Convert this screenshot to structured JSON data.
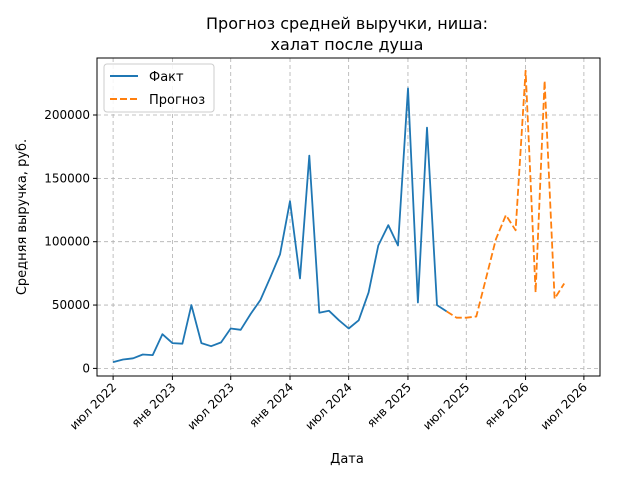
{
  "chart_data": {
    "type": "line",
    "title_line1": "Прогноз средней выручки, ниша:",
    "title_line2": "халат после душа",
    "xlabel": "Дата",
    "ylabel": "Средняя выручка, руб.",
    "x_tick_labels": [
      "июл 2022",
      "янв 2023",
      "июл 2023",
      "янв 2024",
      "июл 2024",
      "янв 2025",
      "июл 2025",
      "янв 2026",
      "июл 2026"
    ],
    "y_ticks": [
      0,
      50000,
      100000,
      150000,
      200000
    ],
    "y_tick_labels": [
      "0",
      "50000",
      "100000",
      "150000",
      "200000"
    ],
    "ylim": [
      -6000,
      245000
    ],
    "grid": true,
    "legend_position": "top-left",
    "series": [
      {
        "name": "Факт",
        "color": "#1f77b4",
        "style": "solid",
        "points": [
          [
            "2022-07",
            5000
          ],
          [
            "2022-08",
            7000
          ],
          [
            "2022-09",
            8000
          ],
          [
            "2022-10",
            11000
          ],
          [
            "2022-11",
            10500
          ],
          [
            "2022-12",
            27000
          ],
          [
            "2023-01",
            20000
          ],
          [
            "2023-02",
            19500
          ],
          [
            "2023-03",
            50000
          ],
          [
            "2023-04",
            20000
          ],
          [
            "2023-05",
            17500
          ],
          [
            "2023-06",
            20500
          ],
          [
            "2023-07",
            31500
          ],
          [
            "2023-08",
            30500
          ],
          [
            "2023-09",
            43000
          ],
          [
            "2023-10",
            54000
          ],
          [
            "2023-11",
            72000
          ],
          [
            "2023-12",
            90000
          ],
          [
            "2024-01",
            132000
          ],
          [
            "2024-02",
            71000
          ],
          [
            "2024-03",
            168000
          ],
          [
            "2024-04",
            44000
          ],
          [
            "2024-05",
            45500
          ],
          [
            "2024-06",
            38000
          ],
          [
            "2024-07",
            31500
          ],
          [
            "2024-08",
            38000
          ],
          [
            "2024-09",
            60000
          ],
          [
            "2024-10",
            97000
          ],
          [
            "2024-11",
            113000
          ],
          [
            "2024-12",
            97000
          ],
          [
            "2025-01",
            221000
          ],
          [
            "2025-02",
            52000
          ],
          [
            "2025-03",
            190000
          ],
          [
            "2025-04",
            50000
          ],
          [
            "2025-05",
            45000
          ]
        ]
      },
      {
        "name": "Прогноз",
        "color": "#ff7f0e",
        "style": "dashed",
        "points": [
          [
            "2025-05",
            45000
          ],
          [
            "2025-06",
            40000
          ],
          [
            "2025-07",
            40000
          ],
          [
            "2025-08",
            41000
          ],
          [
            "2025-09",
            72000
          ],
          [
            "2025-10",
            102000
          ],
          [
            "2025-11",
            121000
          ],
          [
            "2025-12",
            109000
          ],
          [
            "2026-01",
            235000
          ],
          [
            "2026-02",
            60000
          ],
          [
            "2026-03",
            227000
          ],
          [
            "2026-04",
            55000
          ],
          [
            "2026-05",
            67000
          ]
        ]
      }
    ]
  }
}
